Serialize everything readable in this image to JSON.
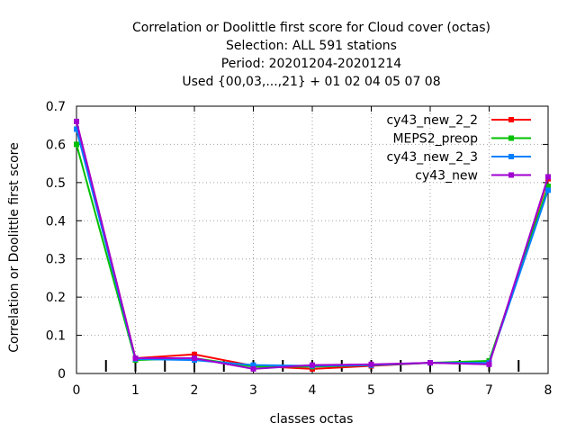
{
  "chart_data": {
    "type": "line",
    "title_lines": [
      "Correlation or Doolittle first score  for Cloud cover (octas)",
      "Selection: ALL    591 stations",
      "Period: 20201204-20201214",
      "Used {00,03,...,21} + 01 02 04 05 07 08"
    ],
    "xlabel": "classes octas",
    "ylabel": "Correlation or Doolittle first score",
    "xlim": [
      0,
      8
    ],
    "ylim": [
      0,
      0.7
    ],
    "x_ticks": [
      "0",
      "1",
      "2",
      "3",
      "4",
      "5",
      "6",
      "7",
      "8"
    ],
    "y_ticks": [
      "0",
      "0.1",
      "0.2",
      "0.3",
      "0.4",
      "0.5",
      "0.6",
      "0.7"
    ],
    "grid": true,
    "legend_position": "top-right",
    "x": [
      0,
      1,
      2,
      3,
      4,
      5,
      6,
      7,
      8
    ],
    "series": [
      {
        "name": "cy43_new_2_2",
        "color": "#ff0000",
        "values": [
          0.66,
          0.04,
          0.05,
          0.02,
          0.012,
          0.02,
          0.028,
          0.025,
          0.51
        ]
      },
      {
        "name": "MEPS2_preop",
        "color": "#00c000",
        "values": [
          0.6,
          0.035,
          0.04,
          0.018,
          0.018,
          0.022,
          0.028,
          0.033,
          0.49
        ]
      },
      {
        "name": "cy43_new_2_3",
        "color": "#0080ff",
        "values": [
          0.64,
          0.038,
          0.035,
          0.022,
          0.02,
          0.022,
          0.028,
          0.028,
          0.48
        ]
      },
      {
        "name": "cy43_new",
        "color": "#a000d0",
        "values": [
          0.66,
          0.04,
          0.04,
          0.012,
          0.022,
          0.024,
          0.028,
          0.024,
          0.515
        ]
      }
    ],
    "rug_x": [
      0.5,
      1,
      1.5,
      2,
      2.5,
      3,
      3.5,
      4,
      4.5,
      5,
      5.5,
      6,
      6.5,
      7,
      7.5
    ]
  }
}
